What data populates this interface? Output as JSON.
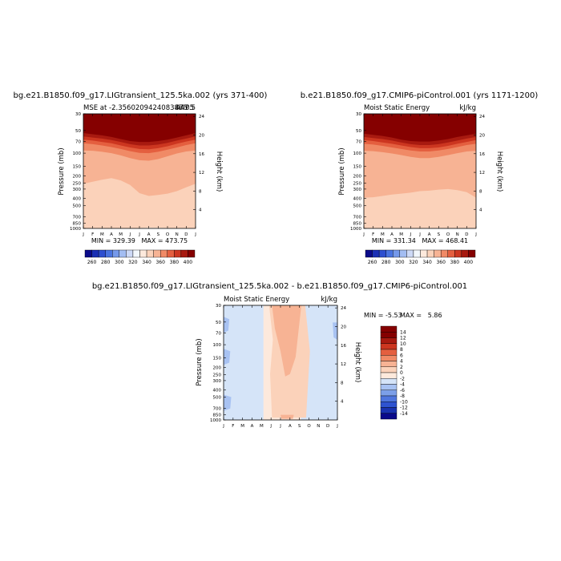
{
  "chart_data": [
    {
      "type": "heatmap",
      "title": "bg.e21.B1850.f09_g17.LIGtransient_125.5ka.002 (yrs 371-400)",
      "subtitle_left": "MSE at -2.35602094240838e-05",
      "subtitle_right": "447.5",
      "subtitle_overlap": "475",
      "stats": "MIN = 329.39   MAX = 473.75",
      "xlabel": "",
      "ylabel": "Pressure (mb)",
      "ylabel_right": "Height (km)",
      "months": [
        "J",
        "F",
        "M",
        "A",
        "M",
        "J",
        "J",
        "A",
        "S",
        "O",
        "N",
        "D",
        "J"
      ],
      "pressure_ticks": [
        30,
        50,
        70,
        100,
        150,
        200,
        250,
        300,
        400,
        500,
        700,
        850,
        1000
      ],
      "height_ticks": [
        4,
        8,
        12,
        16,
        20,
        24
      ],
      "colorbar_labels": [
        "260",
        "280",
        "300",
        "320",
        "340",
        "360",
        "380",
        "400"
      ],
      "isolines": [
        {
          "level": 400,
          "p": [
            54,
            56,
            58,
            61,
            65,
            69,
            71,
            71,
            69,
            66,
            62,
            58,
            54
          ]
        },
        {
          "level": 380,
          "p": [
            60,
            62,
            64,
            67,
            71,
            76,
            79,
            79,
            77,
            73,
            68,
            64,
            60
          ]
        },
        {
          "level": 370,
          "p": [
            66,
            68,
            71,
            74,
            79,
            84,
            88,
            89,
            86,
            81,
            75,
            70,
            66
          ]
        },
        {
          "level": 360,
          "p": [
            74,
            76,
            79,
            83,
            88,
            94,
            99,
            100,
            96,
            90,
            84,
            78,
            74
          ]
        },
        {
          "level": 350,
          "p": [
            92,
            93,
            96,
            100,
            107,
            116,
            124,
            126,
            120,
            110,
            101,
            95,
            92
          ]
        },
        {
          "level": 340,
          "p": [
            255,
            240,
            225,
            215,
            230,
            265,
            340,
            370,
            360,
            345,
            320,
            285,
            255
          ]
        },
        {
          "level": 330,
          "p": [
            990,
            990,
            990,
            990,
            990,
            990,
            985,
            970,
            975,
            985,
            990,
            990,
            990
          ]
        }
      ]
    },
    {
      "type": "heatmap",
      "title": "b.e21.B1850.f09_g17.CMIP6-piControl.001 (yrs 1171-1200)",
      "subtitle_left": "Moist Static Energy",
      "subtitle_right": "kJ/kg",
      "stats": "MIN = 331.34   MAX = 468.41",
      "xlabel": "",
      "ylabel": "Pressure (mb)",
      "ylabel_right": "Height (km)",
      "months": [
        "J",
        "F",
        "M",
        "A",
        "M",
        "J",
        "J",
        "A",
        "S",
        "O",
        "N",
        "D",
        "J"
      ],
      "pressure_ticks": [
        30,
        50,
        70,
        100,
        150,
        200,
        250,
        300,
        400,
        500,
        700,
        850,
        1000
      ],
      "height_ticks": [
        4,
        8,
        12,
        16,
        20,
        24
      ],
      "colorbar_labels": [
        "260",
        "280",
        "300",
        "320",
        "340",
        "360",
        "380",
        "400"
      ],
      "isolines": [
        {
          "level": 400,
          "p": [
            55,
            57,
            59,
            62,
            66,
            69,
            70,
            70,
            68,
            65,
            61,
            58,
            55
          ]
        },
        {
          "level": 380,
          "p": [
            61,
            63,
            65,
            68,
            72,
            76,
            78,
            78,
            76,
            72,
            68,
            64,
            61
          ]
        },
        {
          "level": 370,
          "p": [
            67,
            69,
            72,
            75,
            79,
            83,
            86,
            86,
            84,
            80,
            75,
            71,
            67
          ]
        },
        {
          "level": 360,
          "p": [
            75,
            77,
            80,
            84,
            88,
            92,
            95,
            95,
            92,
            88,
            83,
            78,
            75
          ]
        },
        {
          "level": 350,
          "p": [
            93,
            94,
            97,
            101,
            106,
            112,
            116,
            116,
            112,
            106,
            100,
            95,
            93
          ]
        },
        {
          "level": 340,
          "p": [
            390,
            385,
            370,
            355,
            345,
            335,
            320,
            315,
            305,
            300,
            310,
            330,
            390
          ]
        },
        {
          "level": 330,
          "p": [
            990,
            990,
            990,
            990,
            990,
            990,
            990,
            990,
            990,
            990,
            990,
            990,
            990
          ]
        }
      ]
    },
    {
      "type": "heatmap",
      "title": "bg.e21.B1850.f09_g17.LIGtransient_125.5ka.002 - b.e21.B1850.f09_g17.CMIP6-piControl.001",
      "subtitle_left": "Moist Static Energy",
      "subtitle_right": "kJ/kg",
      "stats_min": "MIN = -5.53",
      "stats_max": "MAX =   5.86",
      "xlabel": "",
      "ylabel": "Pressure (mb)",
      "ylabel_right": "Height (km)",
      "months": [
        "J",
        "F",
        "M",
        "A",
        "M",
        "J",
        "J",
        "A",
        "S",
        "O",
        "N",
        "D",
        "J"
      ],
      "pressure_ticks": [
        30,
        50,
        70,
        100,
        150,
        200,
        250,
        300,
        400,
        500,
        700,
        850,
        1000
      ],
      "height_ticks": [
        4,
        8,
        12,
        16,
        20,
        24
      ],
      "colorbar_labels": [
        "14",
        "12",
        "10",
        "8",
        "6",
        "4",
        "2",
        "0",
        "-2",
        "-4",
        "-6",
        "-8",
        "-10",
        "-12",
        "-14"
      ],
      "regions": [
        {
          "level": -2,
          "months": [
            [
              0,
              0
            ],
            [
              1.5,
              0
            ],
            [
              1.8,
              0.35
            ],
            [
              1.6,
              0.7
            ],
            [
              1.9,
              1
            ],
            [
              0,
              1
            ]
          ]
        },
        {
          "level": -4,
          "months": [
            [
              0,
              0.1
            ],
            [
              0.6,
              0.12
            ],
            [
              0.5,
              0.22
            ],
            [
              0,
              0.24
            ]
          ]
        },
        {
          "level": -4,
          "months": [
            [
              0,
              0.38
            ],
            [
              0.7,
              0.4
            ],
            [
              0.6,
              0.5
            ],
            [
              0,
              0.52
            ]
          ]
        },
        {
          "level": -4,
          "months": [
            [
              0,
              0.78
            ],
            [
              0.8,
              0.8
            ],
            [
              0.7,
              0.9
            ],
            [
              0,
              0.92
            ]
          ]
        },
        {
          "level": 2,
          "months": [
            [
              4.8,
              0
            ],
            [
              8.6,
              0
            ],
            [
              9.1,
              0.4
            ],
            [
              8.7,
              0.98
            ],
            [
              5.1,
              0.98
            ],
            [
              4.9,
              0.6
            ],
            [
              5.2,
              0.3
            ]
          ]
        },
        {
          "level": 4,
          "months": [
            [
              5.1,
              0
            ],
            [
              8.2,
              0
            ],
            [
              7.6,
              0.45
            ],
            [
              7,
              0.6
            ],
            [
              6.5,
              0.62
            ],
            [
              6,
              0.4
            ],
            [
              5.4,
              0.2
            ]
          ]
        },
        {
          "level": -2,
          "months": [
            [
              9.4,
              0.05
            ],
            [
              10.3,
              0.05
            ],
            [
              10.5,
              0.5
            ],
            [
              9.8,
              0.95
            ],
            [
              9.4,
              0.6
            ]
          ]
        },
        {
          "level": -2,
          "months": [
            [
              11.2,
              0
            ],
            [
              12,
              0
            ],
            [
              12,
              1
            ],
            [
              11.5,
              1
            ],
            [
              11.1,
              0.5
            ]
          ]
        },
        {
          "level": -4,
          "months": [
            [
              11.5,
              0.15
            ],
            [
              12,
              0.15
            ],
            [
              12,
              0.3
            ],
            [
              11.6,
              0.28
            ]
          ]
        },
        {
          "level": 4,
          "months": [
            [
              6,
              0.955
            ],
            [
              7.4,
              0.955
            ],
            [
              7.3,
              0.99
            ],
            [
              6.1,
              0.99
            ]
          ]
        }
      ]
    }
  ],
  "colors": {
    "mse_scale": [
      "#0a0a8a",
      "#1a2fb4",
      "#2d4fd0",
      "#4a74e0",
      "#7599ea",
      "#a3bdf2",
      "#cdd9f6",
      "#f2f7fc",
      "#fde9dc",
      "#fbd2ba",
      "#f7b394",
      "#f08a66",
      "#e45f3f",
      "#cc3620",
      "#a81a10",
      "#850000"
    ],
    "diff_scale": [
      "#850000",
      "#a81a10",
      "#cc3620",
      "#e45f3f",
      "#f08a66",
      "#f7b394",
      "#fbd2ba",
      "#fde9dc",
      "#d5e4f8",
      "#a8c2f2",
      "#7c9fe8",
      "#4f76de",
      "#2e53d0",
      "#1932b0",
      "#0a0a8a"
    ]
  }
}
